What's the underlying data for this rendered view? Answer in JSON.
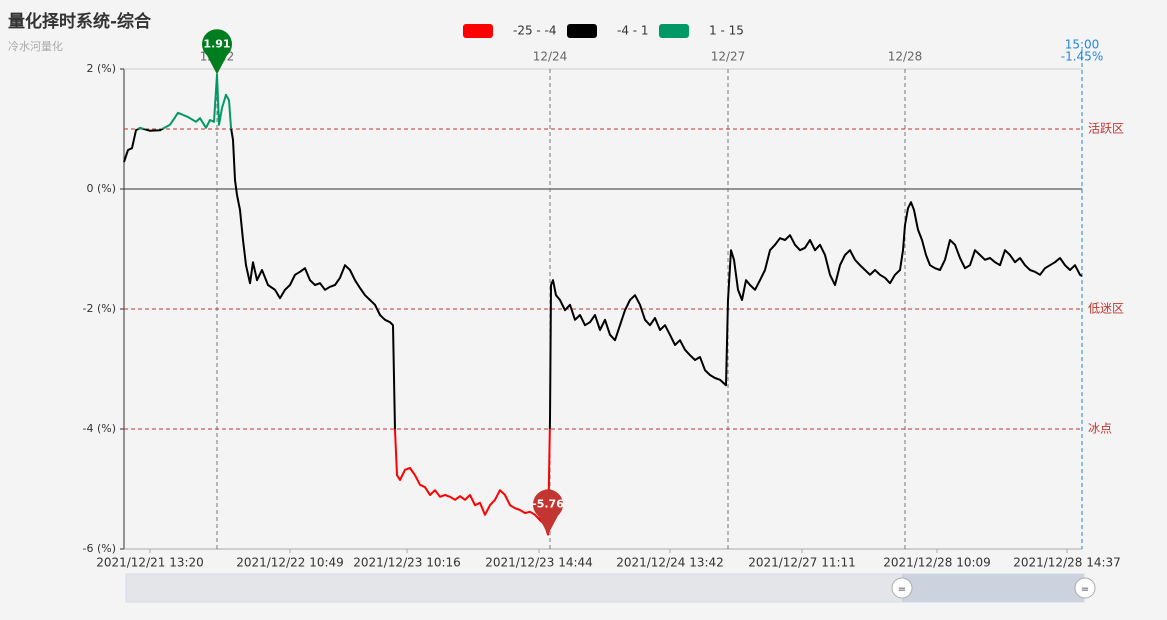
{
  "chart_data": {
    "type": "line",
    "title": "量化择时系统-综合",
    "subtitle": "冷水河量化",
    "xlim": [
      0,
      958
    ],
    "ylim": [
      -6,
      2
    ],
    "yticks": [
      {
        "value": 2,
        "label": "2 (%)"
      },
      {
        "value": 0,
        "label": "0 (%)"
      },
      {
        "value": -2,
        "label": "-2 (%)"
      },
      {
        "value": -4,
        "label": "-4 (%)"
      },
      {
        "value": -6,
        "label": "-6 (%)"
      }
    ],
    "xticks": [
      {
        "value": 26,
        "label": "2021/12/21 13:20"
      },
      {
        "value": 166,
        "label": "2021/12/22 10:49"
      },
      {
        "value": 283,
        "label": "2021/12/23 10:16"
      },
      {
        "value": 415,
        "label": "2021/12/23 14:44"
      },
      {
        "value": 546,
        "label": "2021/12/24 13:42"
      },
      {
        "value": 678,
        "label": "2021/12/27 11:11"
      },
      {
        "value": 813,
        "label": "2021/12/28 10:09"
      },
      {
        "value": 943,
        "label": "2021/12/28 14:37"
      }
    ],
    "pieces": [
      {
        "label": "-25 - -4",
        "min": -25,
        "max": -4,
        "color": "#ff0000"
      },
      {
        "label": "-4 - 1",
        "min": -4,
        "max": 1,
        "color": "#000000"
      },
      {
        "label": "1 - 15",
        "min": 1,
        "max": 15,
        "color": "#009966"
      }
    ],
    "mark_lines": [
      {
        "value": 1,
        "label": "活跃区"
      },
      {
        "value": -2,
        "label": "低迷区"
      },
      {
        "value": -4,
        "label": "冰点"
      }
    ],
    "mark_line_color": "#c23531",
    "day_lines": [
      {
        "x": 93,
        "label": "12/22"
      },
      {
        "x": 426,
        "label": "12/24"
      },
      {
        "x": 604,
        "label": "12/27"
      },
      {
        "x": 781,
        "label": "12/28"
      }
    ],
    "last_line": {
      "x": 958,
      "time": "15:00",
      "label": "-1.45%",
      "color": "#1e88e5"
    },
    "annotations": [
      {
        "text": "1.91",
        "x": 93,
        "y": 1.91,
        "color": "#007d1e"
      },
      {
        "text": "-5.76",
        "x": 424,
        "y": -5.76,
        "color": "#c23531"
      }
    ],
    "x": [
      0,
      4,
      8,
      12,
      16,
      26,
      36,
      46,
      54,
      64,
      72,
      76,
      82,
      86,
      90,
      93,
      95,
      98,
      102,
      105,
      107,
      109,
      111,
      113,
      116,
      119,
      122,
      126,
      129,
      133,
      138,
      144,
      151,
      156,
      161,
      166,
      171,
      176,
      181,
      186,
      191,
      196,
      201,
      206,
      211,
      216,
      221,
      226,
      231,
      236,
      241,
      246,
      251,
      256,
      261,
      266,
      269,
      271,
      273,
      276,
      281,
      286,
      291,
      296,
      301,
      306,
      311,
      316,
      321,
      326,
      331,
      336,
      341,
      346,
      351,
      356,
      361,
      366,
      371,
      376,
      381,
      386,
      391,
      396,
      401,
      406,
      411,
      416,
      421,
      424,
      426,
      427,
      429,
      432,
      436,
      441,
      446,
      451,
      456,
      461,
      466,
      471,
      476,
      481,
      486,
      491,
      496,
      501,
      506,
      511,
      516,
      521,
      526,
      531,
      536,
      541,
      546,
      551,
      556,
      561,
      566,
      571,
      576,
      581,
      586,
      591,
      596,
      602,
      604,
      607,
      610,
      614,
      618,
      622,
      626,
      631,
      636,
      641,
      646,
      651,
      656,
      661,
      666,
      671,
      676,
      681,
      686,
      691,
      696,
      701,
      706,
      711,
      716,
      721,
      726,
      731,
      736,
      741,
      746,
      751,
      756,
      761,
      766,
      771,
      776,
      779,
      781,
      784,
      787,
      790,
      794,
      798,
      802,
      806,
      811,
      816,
      821,
      826,
      831,
      836,
      841,
      846,
      851,
      856,
      861,
      866,
      871,
      876,
      881,
      886,
      891,
      896,
      901,
      906,
      911,
      916,
      921,
      926,
      931,
      936,
      941,
      946,
      951,
      956,
      958
    ],
    "values": [
      0.45,
      0.65,
      0.68,
      0.98,
      1.02,
      0.97,
      0.98,
      1.07,
      1.27,
      1.2,
      1.12,
      1.18,
      1.02,
      1.15,
      1.12,
      1.91,
      1.07,
      1.35,
      1.57,
      1.48,
      1.02,
      0.82,
      0.15,
      -0.1,
      -0.35,
      -0.85,
      -1.27,
      -1.57,
      -1.22,
      -1.52,
      -1.35,
      -1.6,
      -1.68,
      -1.82,
      -1.68,
      -1.6,
      -1.43,
      -1.38,
      -1.32,
      -1.52,
      -1.6,
      -1.57,
      -1.68,
      -1.63,
      -1.6,
      -1.48,
      -1.27,
      -1.35,
      -1.52,
      -1.65,
      -1.77,
      -1.85,
      -1.93,
      -2.1,
      -2.18,
      -2.22,
      -2.27,
      -4.02,
      -4.77,
      -4.85,
      -4.68,
      -4.65,
      -4.77,
      -4.93,
      -4.97,
      -5.1,
      -5.02,
      -5.13,
      -5.1,
      -5.13,
      -5.18,
      -5.12,
      -5.18,
      -5.1,
      -5.27,
      -5.23,
      -5.43,
      -5.27,
      -5.18,
      -5.02,
      -5.1,
      -5.27,
      -5.32,
      -5.35,
      -5.4,
      -5.38,
      -5.43,
      -5.52,
      -5.6,
      -5.76,
      -3.85,
      -1.6,
      -1.52,
      -1.77,
      -1.85,
      -2.02,
      -1.93,
      -2.18,
      -2.1,
      -2.27,
      -2.22,
      -2.1,
      -2.35,
      -2.18,
      -2.43,
      -2.52,
      -2.27,
      -2.02,
      -1.85,
      -1.77,
      -1.93,
      -2.18,
      -2.27,
      -2.15,
      -2.35,
      -2.27,
      -2.43,
      -2.6,
      -2.52,
      -2.68,
      -2.77,
      -2.85,
      -2.8,
      -3.02,
      -3.1,
      -3.15,
      -3.18,
      -3.27,
      -1.85,
      -1.02,
      -1.18,
      -1.68,
      -1.85,
      -1.52,
      -1.6,
      -1.68,
      -1.52,
      -1.35,
      -1.02,
      -0.93,
      -0.82,
      -0.85,
      -0.77,
      -0.93,
      -1.02,
      -0.98,
      -0.85,
      -1.02,
      -0.93,
      -1.1,
      -1.43,
      -1.6,
      -1.27,
      -1.1,
      -1.02,
      -1.18,
      -1.27,
      -1.35,
      -1.43,
      -1.35,
      -1.43,
      -1.48,
      -1.57,
      -1.43,
      -1.35,
      -1.02,
      -0.6,
      -0.32,
      -0.22,
      -0.35,
      -0.68,
      -0.85,
      -1.1,
      -1.27,
      -1.32,
      -1.35,
      -1.18,
      -0.85,
      -0.93,
      -1.15,
      -1.32,
      -1.27,
      -1.02,
      -1.1,
      -1.18,
      -1.15,
      -1.22,
      -1.27,
      -1.02,
      -1.1,
      -1.22,
      -1.15,
      -1.27,
      -1.35,
      -1.38,
      -1.43,
      -1.32,
      -1.27,
      -1.22,
      -1.15,
      -1.27,
      -1.35,
      -1.27,
      -1.43,
      -1.45
    ]
  }
}
